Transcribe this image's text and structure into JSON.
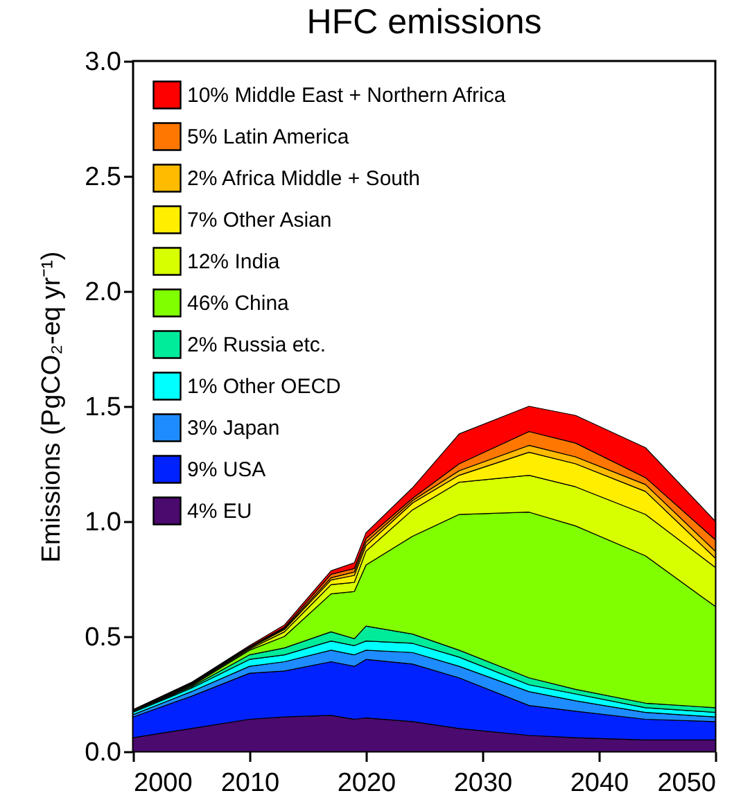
{
  "chart_data": {
    "type": "area",
    "title": "HFC emissions",
    "ylabel": "Emissions (PgCO₂-eq yr⁻¹)",
    "stacked": true,
    "legend": "top left",
    "grid": false,
    "x": [
      2000,
      2005,
      2010,
      2013,
      2017,
      2019,
      2020,
      2024,
      2028,
      2034,
      2038,
      2044,
      2050
    ],
    "xlim": [
      2000,
      2050
    ],
    "xticks": [
      2000,
      2010,
      2020,
      2030,
      2040,
      2050
    ],
    "ylim": [
      0,
      3
    ],
    "yticks": [
      {
        "value": 0,
        "label": "0.0"
      },
      {
        "value": 0.5,
        "label": "0.5"
      },
      {
        "value": 1,
        "label": "1.0"
      },
      {
        "value": 1.5,
        "label": "1.5"
      },
      {
        "value": 2,
        "label": "2.0"
      },
      {
        "value": 2.5,
        "label": "2.5"
      },
      {
        "value": 3,
        "label": "3.0"
      }
    ],
    "series": [
      {
        "name": "4% EU",
        "color": "#4b0a6e",
        "values": [
          0.06,
          0.1,
          0.14,
          0.15,
          0.157,
          0.14,
          0.146,
          0.13,
          0.1,
          0.07,
          0.06,
          0.05,
          0.05
        ]
      },
      {
        "name": "9% USA",
        "color": "#0022ff",
        "values": [
          0.09,
          0.14,
          0.2,
          0.2,
          0.233,
          0.23,
          0.254,
          0.25,
          0.22,
          0.13,
          0.115,
          0.09,
          0.08
        ]
      },
      {
        "name": "3% Japan",
        "color": "#1e8cff",
        "values": [
          0.01,
          0.02,
          0.03,
          0.04,
          0.05,
          0.05,
          0.04,
          0.05,
          0.05,
          0.06,
          0.045,
          0.03,
          0.02
        ]
      },
      {
        "name": "1% Other OECD",
        "color": "#00ffff",
        "values": [
          0.01,
          0.015,
          0.03,
          0.03,
          0.04,
          0.04,
          0.04,
          0.04,
          0.04,
          0.03,
          0.03,
          0.02,
          0.02
        ]
      },
      {
        "name": "2% Russia etc.",
        "color": "#00eb9a",
        "values": [
          0.005,
          0.005,
          0.02,
          0.03,
          0.04,
          0.03,
          0.065,
          0.04,
          0.03,
          0.03,
          0.02,
          0.02,
          0.02
        ]
      },
      {
        "name": "46% China",
        "color": "#80ff00",
        "values": [
          0,
          0.005,
          0.02,
          0.05,
          0.165,
          0.205,
          0.265,
          0.425,
          0.59,
          0.72,
          0.71,
          0.64,
          0.44
        ]
      },
      {
        "name": "12% India",
        "color": "#d8ff00",
        "values": [
          0.002,
          0.005,
          0.005,
          0.02,
          0.04,
          0.04,
          0.06,
          0.115,
          0.14,
          0.16,
          0.17,
          0.18,
          0.17
        ]
      },
      {
        "name": "7% Other Asian",
        "color": "#ffee00",
        "values": [
          0.001,
          0.003,
          0.005,
          0.01,
          0.02,
          0.03,
          0.025,
          0.03,
          0.03,
          0.1,
          0.1,
          0.1,
          0.04
        ]
      },
      {
        "name": "2% Africa Middle + South",
        "color": "#ffbb00",
        "values": [
          0.001,
          0.002,
          0.002,
          0.005,
          0.01,
          0.015,
          0.015,
          0.01,
          0.02,
          0.03,
          0.03,
          0.03,
          0.03
        ]
      },
      {
        "name": "5% Latin America",
        "color": "#ff7700",
        "values": [
          0.001,
          0.003,
          0.003,
          0.005,
          0.015,
          0.015,
          0.015,
          0.01,
          0.03,
          0.06,
          0.06,
          0.03,
          0.05
        ]
      },
      {
        "name": "10% Middle East + Northern Africa",
        "color": "#ff0000",
        "values": [
          0.002,
          0.002,
          0.005,
          0.01,
          0.015,
          0.025,
          0.025,
          0.046,
          0.13,
          0.11,
          0.12,
          0.13,
          0.08
        ]
      }
    ]
  }
}
